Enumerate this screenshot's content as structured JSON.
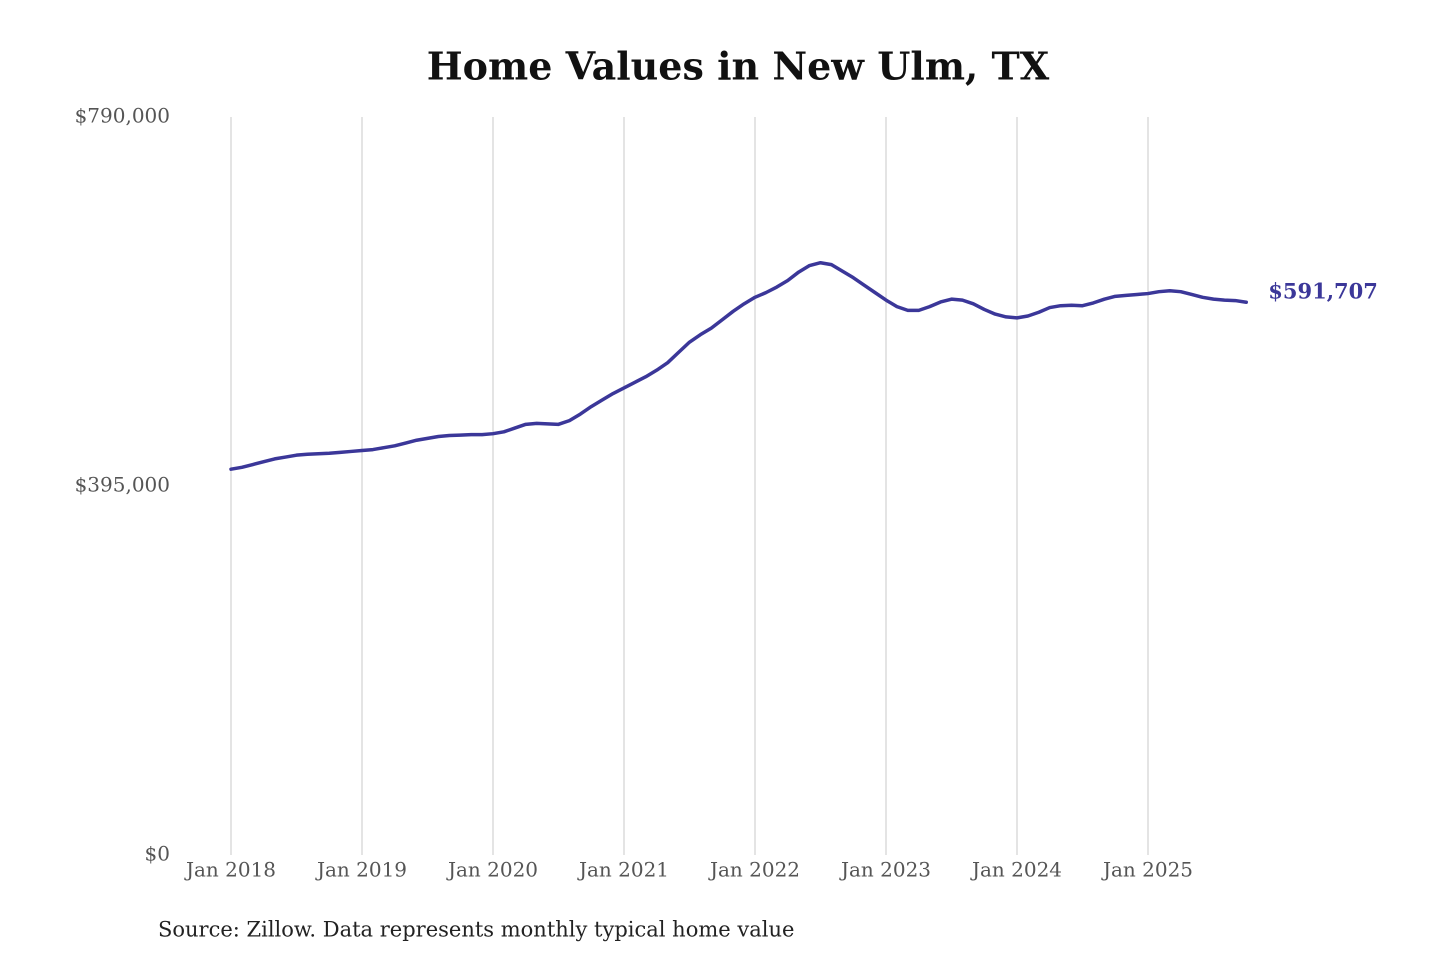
{
  "chart_data": {
    "type": "line",
    "title": "Home Values in New Ulm, TX",
    "source": "Source: Zillow. Data represents monthly typical home value",
    "x": [
      "2018-01",
      "2018-02",
      "2018-03",
      "2018-04",
      "2018-05",
      "2018-06",
      "2018-07",
      "2018-08",
      "2018-09",
      "2018-10",
      "2018-11",
      "2018-12",
      "2019-01",
      "2019-02",
      "2019-03",
      "2019-04",
      "2019-05",
      "2019-06",
      "2019-07",
      "2019-08",
      "2019-09",
      "2019-10",
      "2019-11",
      "2019-12",
      "2020-01",
      "2020-02",
      "2020-03",
      "2020-04",
      "2020-05",
      "2020-06",
      "2020-07",
      "2020-08",
      "2020-09",
      "2020-10",
      "2020-11",
      "2020-12",
      "2021-01",
      "2021-02",
      "2021-03",
      "2021-04",
      "2021-05",
      "2021-06",
      "2021-07",
      "2021-08",
      "2021-09",
      "2021-10",
      "2021-11",
      "2021-12",
      "2022-01",
      "2022-02",
      "2022-03",
      "2022-04",
      "2022-05",
      "2022-06",
      "2022-07",
      "2022-08",
      "2022-09",
      "2022-10",
      "2022-11",
      "2022-12",
      "2023-01",
      "2023-02",
      "2023-03",
      "2023-04",
      "2023-05",
      "2023-06",
      "2023-07",
      "2023-08",
      "2023-09",
      "2023-10",
      "2023-11",
      "2023-12",
      "2024-01",
      "2024-02",
      "2024-03",
      "2024-04",
      "2024-05",
      "2024-06",
      "2024-07",
      "2024-08",
      "2024-09",
      "2024-10",
      "2024-11",
      "2024-12",
      "2025-01",
      "2025-02",
      "2025-03",
      "2025-04",
      "2025-05",
      "2025-06",
      "2025-07",
      "2025-08",
      "2025-09",
      "2025-10"
    ],
    "series": [
      {
        "name": "New Ulm, TX",
        "color": "#3b3799",
        "values": [
          413000,
          415000,
          418000,
          421000,
          424000,
          426000,
          428000,
          429000,
          429500,
          430000,
          431000,
          432000,
          433000,
          434000,
          436000,
          438000,
          441000,
          444000,
          446000,
          448000,
          449000,
          449500,
          450000,
          450000,
          451000,
          453000,
          457000,
          461000,
          462000,
          461500,
          461000,
          465000,
          472000,
          480000,
          487000,
          494000,
          500000,
          506000,
          512000,
          519000,
          527000,
          538000,
          549000,
          557000,
          564000,
          573000,
          582000,
          590000,
          597000,
          602000,
          608000,
          615000,
          624000,
          631000,
          634000,
          632000,
          625000,
          618000,
          610000,
          602000,
          594000,
          587000,
          583000,
          583000,
          587000,
          592000,
          595000,
          594000,
          590000,
          584000,
          579000,
          576000,
          575000,
          577000,
          581000,
          586000,
          588000,
          588500,
          588000,
          591000,
          595000,
          598000,
          599000,
          600000,
          601000,
          603000,
          604000,
          603000,
          600000,
          597000,
          595000,
          594000,
          593500,
          591707
        ]
      }
    ],
    "end_label": "$591,707",
    "ylim": [
      0,
      790000
    ],
    "yticks": [
      {
        "value": 0,
        "label": "$0"
      },
      {
        "value": 395000,
        "label": "$395,000"
      },
      {
        "value": 790000,
        "label": "$790,000"
      }
    ],
    "xticks": [
      {
        "value": "2018-01",
        "label": "Jan 2018"
      },
      {
        "value": "2019-01",
        "label": "Jan 2019"
      },
      {
        "value": "2020-01",
        "label": "Jan 2020"
      },
      {
        "value": "2021-01",
        "label": "Jan 2021"
      },
      {
        "value": "2022-01",
        "label": "Jan 2022"
      },
      {
        "value": "2023-01",
        "label": "Jan 2023"
      },
      {
        "value": "2024-01",
        "label": "Jan 2024"
      },
      {
        "value": "2025-01",
        "label": "Jan 2025"
      }
    ],
    "grid": "x"
  }
}
